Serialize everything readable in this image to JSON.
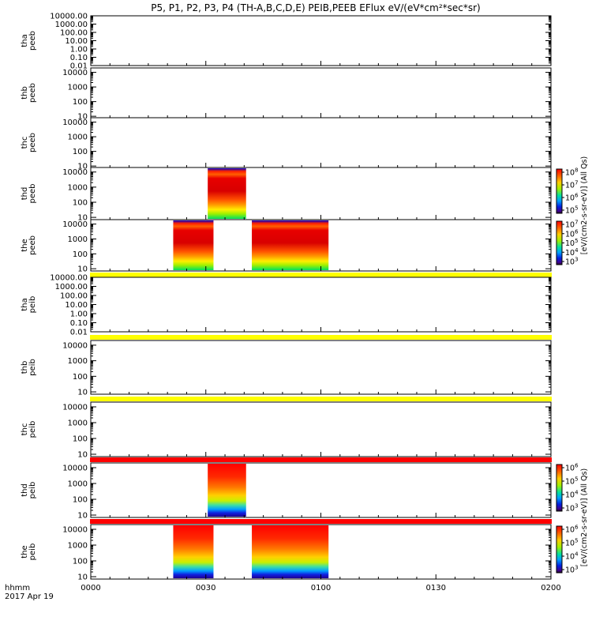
{
  "chart_data": {
    "type": "heatmap",
    "title": "P5, P1, P2, P3, P4 (TH-A,B,C,D,E) PEIB,PEEB EFlux eV/(eV*cm²*sec*sr)",
    "xlabel_top": "hhmm",
    "xlabel_bottom": "2017 Apr 19",
    "x_ticks": [
      "0000",
      "0030",
      "0100",
      "0130",
      "0200"
    ],
    "x_range_minutes": [
      0,
      120
    ],
    "colorbar_label": "[eV/(cm2-s-sr-eV)] (All Qs)",
    "panels": [
      {
        "probe": "tha",
        "species": "peeb",
        "ylabel": [
          "tha",
          "peeb"
        ],
        "y_ticks": [
          "10000.00",
          "1000.00",
          "100.00",
          "10.00",
          "1.00",
          "0.10",
          "0.01"
        ],
        "y_log_range": [
          -2,
          4
        ],
        "blocks": [],
        "flag": null
      },
      {
        "probe": "thb",
        "species": "peeb",
        "ylabel": [
          "thb",
          "peeb"
        ],
        "y_ticks": [
          "10000",
          "1000",
          "100",
          "10"
        ],
        "y_log_range": [
          0.9,
          4.3
        ],
        "blocks": [],
        "flag": null
      },
      {
        "probe": "thc",
        "species": "peeb",
        "ylabel": [
          "thc",
          "peeb"
        ],
        "y_ticks": [
          "10000",
          "1000",
          "100",
          "10"
        ],
        "y_log_range": [
          0.9,
          4.3
        ],
        "blocks": [],
        "flag": null
      },
      {
        "probe": "thd",
        "species": "peeb",
        "ylabel": [
          "thd",
          "peeb"
        ],
        "y_ticks": [
          "10000",
          "1000",
          "100",
          "10"
        ],
        "y_log_range": [
          0.85,
          4.3
        ],
        "blocks": [
          [
            30.5,
            40.5
          ]
        ],
        "flag": null,
        "colorbar": {
          "exp_ticks": [
            "8",
            "7",
            "6",
            "5"
          ]
        }
      },
      {
        "probe": "the",
        "species": "peeb",
        "ylabel": [
          "the",
          "peeb"
        ],
        "y_ticks": [
          "10000",
          "1000",
          "100",
          "10"
        ],
        "y_log_range": [
          0.85,
          4.3
        ],
        "blocks": [
          [
            21.5,
            32
          ],
          [
            42,
            62
          ]
        ],
        "flag": "yellow",
        "colorbar": {
          "exp_ticks": [
            "7",
            "6",
            "5",
            "4",
            "3"
          ]
        }
      },
      {
        "probe": "tha",
        "species": "peib",
        "ylabel": [
          "tha",
          "peib"
        ],
        "y_ticks": [
          "10000.00",
          "1000.00",
          "100.00",
          "10.00",
          "1.00",
          "0.10",
          "0.01"
        ],
        "y_log_range": [
          -2,
          4
        ],
        "blocks": [],
        "flag": "yellow"
      },
      {
        "probe": "thb",
        "species": "peib",
        "ylabel": [
          "thb",
          "peib"
        ],
        "y_ticks": [
          "10000",
          "1000",
          "100",
          "10"
        ],
        "y_log_range": [
          0.85,
          4.3
        ],
        "blocks": [],
        "flag": "yellow"
      },
      {
        "probe": "thc",
        "species": "peib",
        "ylabel": [
          "thc",
          "peib"
        ],
        "y_ticks": [
          "10000",
          "1000",
          "100",
          "10"
        ],
        "y_log_range": [
          0.85,
          4.3
        ],
        "blocks": [],
        "flag": "red"
      },
      {
        "probe": "thd",
        "species": "peib",
        "ylabel": [
          "thd",
          "peib"
        ],
        "y_ticks": [
          "10000",
          "1000",
          "100",
          "10"
        ],
        "y_log_range": [
          0.85,
          4.3
        ],
        "blocks": [
          [
            30.5,
            40.5
          ]
        ],
        "flag": "red",
        "colorbar": {
          "exp_ticks": [
            "6",
            "5",
            "4",
            "3"
          ]
        }
      },
      {
        "probe": "the",
        "species": "peib",
        "ylabel": [
          "the",
          "peib"
        ],
        "y_ticks": [
          "10000",
          "1000",
          "100",
          "10"
        ],
        "y_log_range": [
          0.85,
          4.3
        ],
        "blocks": [
          [
            21.5,
            32
          ],
          [
            42,
            62
          ]
        ],
        "flag": null,
        "colorbar": {
          "exp_ticks": [
            "6",
            "5",
            "4",
            "3"
          ]
        }
      }
    ]
  },
  "colors": {
    "flag_yellow": "#ffff00",
    "flag_red": "#ff0000"
  }
}
